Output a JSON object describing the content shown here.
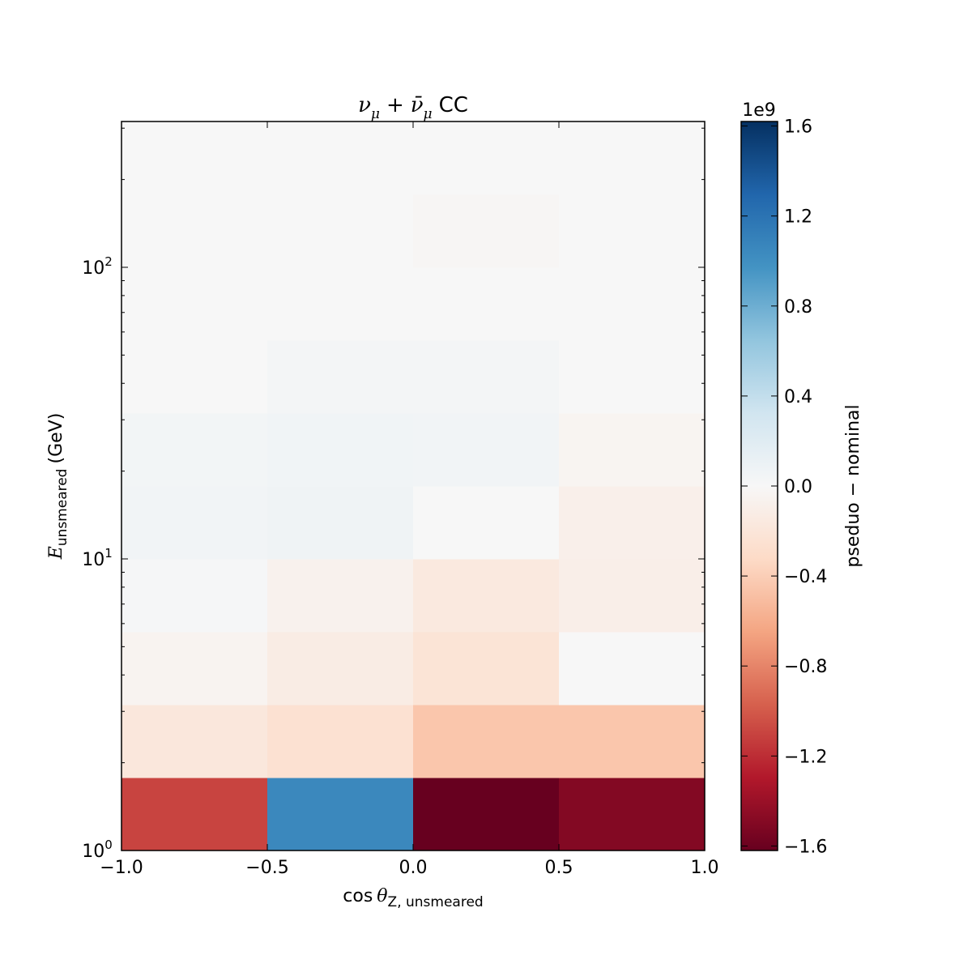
{
  "chart_data": {
    "type": "heatmap",
    "title": {
      "nu": "ν",
      "mu_sub": "μ",
      "plus": "+",
      "nubar": "ν̄",
      "mu_sub2": "μ",
      "suffix": "CC"
    },
    "xlabel": {
      "main": "cos",
      "theta": "θ",
      "sub": "Z, unsmeared"
    },
    "ylabel": {
      "main": "E",
      "sub": "unsmeared",
      "unit": "(GeV)"
    },
    "x_edges": [
      -1.0,
      -0.5,
      0.0,
      0.5,
      1.0
    ],
    "y_edges": [
      1.0,
      1.778,
      3.162,
      5.623,
      10.0,
      17.78,
      31.62,
      56.23,
      100.0,
      177.8,
      316.2
    ],
    "xlim": [
      -1.0,
      1.0
    ],
    "ylim": [
      1.0,
      316.2
    ],
    "yscale": "log",
    "x_tick_labels": [
      "−1.0",
      "−0.5",
      "0.0",
      "0.5",
      "1.0"
    ],
    "x_ticks": [
      -1.0,
      -0.5,
      0.0,
      0.5,
      1.0
    ],
    "y_major_ticks": [
      1,
      10,
      100
    ],
    "y_tick_labels": [
      {
        "base": "10",
        "exp": "0"
      },
      {
        "base": "10",
        "exp": "1"
      },
      {
        "base": "10",
        "exp": "2"
      }
    ],
    "values_rows_low_to_high_energy": [
      [
        -1100000000.0,
        1050000000.0,
        -1620000000.0,
        -1500000000.0
      ],
      [
        -180000000.0,
        -250000000.0,
        -450000000.0,
        -450000000.0
      ],
      [
        -50000000.0,
        -130000000.0,
        -220000000.0,
        0.0
      ],
      [
        20000000.0,
        -70000000.0,
        -160000000.0,
        -100000000.0
      ],
      [
        50000000.0,
        70000000.0,
        0.0,
        -90000000.0
      ],
      [
        40000000.0,
        60000000.0,
        50000000.0,
        -40000000.0
      ],
      [
        0.0,
        30000000.0,
        30000000.0,
        0.0
      ],
      [
        0.0,
        0.0,
        0.0,
        0.0
      ],
      [
        0.0,
        0.0,
        -20000000.0,
        0.0
      ],
      [
        0.0,
        0.0,
        0.0,
        0.0
      ]
    ],
    "colorbar": {
      "label": "pseduo − nominal",
      "offset_text": "1e9",
      "vmin": -1.62,
      "vmax": 1.62,
      "ticks": [
        -1.6,
        -1.2,
        -0.8,
        -0.4,
        0.0,
        0.4,
        0.8,
        1.2,
        1.6
      ],
      "tick_labels": [
        "−1.6",
        "−1.2",
        "−0.8",
        "−0.4",
        "0.0",
        "0.4",
        "0.8",
        "1.2",
        "1.6"
      ],
      "colormap": "RdBu"
    }
  }
}
